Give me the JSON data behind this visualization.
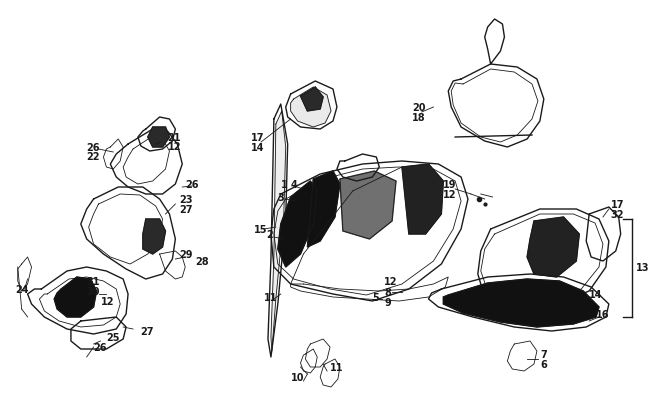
{
  "fig_width": 6.5,
  "fig_height": 4.06,
  "dpi": 100,
  "bg_color": "#ffffff",
  "image_data": "target_embedded"
}
